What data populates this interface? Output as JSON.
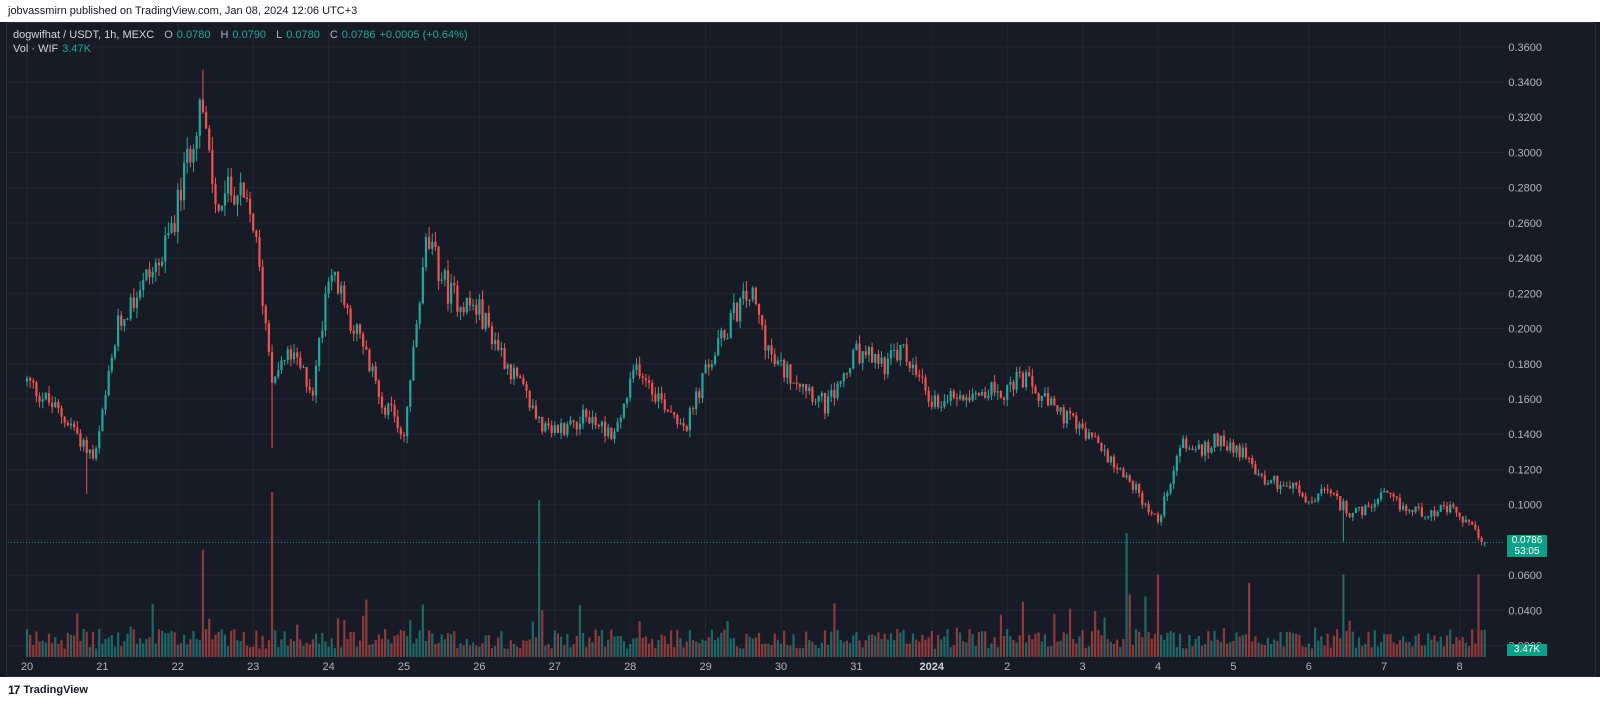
{
  "header": {
    "published_text": "jobvassmirn published on TradingView.com, Jan 08, 2024 12:06 UTC+3"
  },
  "legend": {
    "symbol": "dogwifhat / USDT, 1h, MEXC",
    "o_label": "O",
    "o_value": "0.0780",
    "h_label": "H",
    "h_value": "0.0790",
    "l_label": "L",
    "l_value": "0.0780",
    "c_label": "C",
    "c_value": "0.0786",
    "change": "+0.0005 (+0.64%)",
    "vol_label": "Vol · WIF",
    "vol_value": "3.47K"
  },
  "price_tag": {
    "price": "0.0786",
    "countdown": "53:05"
  },
  "vol_tag": "3.47K",
  "footer": {
    "logo_mark": "17",
    "brand": "TradingView"
  },
  "colors": {
    "up": "#26a69a",
    "down": "#ef5350",
    "background": "#161a25",
    "grid": "#232632",
    "axis_text": "#b2b5be"
  },
  "chart_data": {
    "type": "candlestick",
    "title": "dogwifhat / USDT, 1h, MEXC",
    "y_ticks": [
      "0.3600",
      "0.3400",
      "0.3200",
      "0.3000",
      "0.2800",
      "0.2600",
      "0.2400",
      "0.2200",
      "0.2000",
      "0.1800",
      "0.1600",
      "0.1400",
      "0.1200",
      "0.1000",
      "0.0800",
      "0.0600",
      "0.0400",
      "0.0200"
    ],
    "ylim": [
      0.0135,
      0.3735
    ],
    "x_ticks": [
      "20",
      "21",
      "22",
      "23",
      "24",
      "25",
      "26",
      "27",
      "28",
      "29",
      "30",
      "31",
      "2024",
      "2",
      "3",
      "4",
      "5",
      "6",
      "7",
      "8"
    ],
    "x_tick_bold": [
      "2024"
    ],
    "close_anchors": [
      {
        "date": "20",
        "close": 0.17
      },
      {
        "date": "20.6",
        "close": 0.145
      },
      {
        "date": "20.9",
        "close": 0.125
      },
      {
        "date": "21.2",
        "close": 0.2
      },
      {
        "date": "21.5",
        "close": 0.225
      },
      {
        "date": "21.8",
        "close": 0.24
      },
      {
        "date": "22.0",
        "close": 0.27
      },
      {
        "date": "22.3",
        "close": 0.33
      },
      {
        "date": "22.5",
        "close": 0.27
      },
      {
        "date": "22.75",
        "close": 0.28
      },
      {
        "date": "23.0",
        "close": 0.26
      },
      {
        "date": "23.25",
        "close": 0.175
      },
      {
        "date": "23.5",
        "close": 0.185
      },
      {
        "date": "23.8",
        "close": 0.165
      },
      {
        "date": "24.0",
        "close": 0.235
      },
      {
        "date": "24.4",
        "close": 0.195
      },
      {
        "date": "24.7",
        "close": 0.16
      },
      {
        "date": "25.0",
        "close": 0.14
      },
      {
        "date": "25.3",
        "close": 0.25
      },
      {
        "date": "25.6",
        "close": 0.22
      },
      {
        "date": "26.0",
        "close": 0.21
      },
      {
        "date": "26.5",
        "close": 0.17
      },
      {
        "date": "26.9",
        "close": 0.14
      },
      {
        "date": "27.4",
        "close": 0.15
      },
      {
        "date": "27.8",
        "close": 0.14
      },
      {
        "date": "28.1",
        "close": 0.18
      },
      {
        "date": "28.4",
        "close": 0.16
      },
      {
        "date": "28.75",
        "close": 0.145
      },
      {
        "date": "29.0",
        "close": 0.175
      },
      {
        "date": "29.4",
        "close": 0.21
      },
      {
        "date": "29.6",
        "close": 0.22
      },
      {
        "date": "29.9",
        "close": 0.18
      },
      {
        "date": "30.3",
        "close": 0.17
      },
      {
        "date": "30.6",
        "close": 0.155
      },
      {
        "date": "31.0",
        "close": 0.185
      },
      {
        "date": "31.4",
        "close": 0.18
      },
      {
        "date": "31.6",
        "close": 0.188
      },
      {
        "date": "1.0",
        "close": 0.158
      },
      {
        "date": "1.5",
        "close": 0.165
      },
      {
        "date": "2.0",
        "close": 0.165
      },
      {
        "date": "2.2",
        "close": 0.172
      },
      {
        "date": "2.5",
        "close": 0.158
      },
      {
        "date": "2.9",
        "close": 0.145
      },
      {
        "date": "3.3",
        "close": 0.13
      },
      {
        "date": "3.6",
        "close": 0.115
      },
      {
        "date": "4.0",
        "close": 0.09
      },
      {
        "date": "4.3",
        "close": 0.135
      },
      {
        "date": "4.6",
        "close": 0.13
      },
      {
        "date": "4.8",
        "close": 0.138
      },
      {
        "date": "5.1",
        "close": 0.13
      },
      {
        "date": "5.4",
        "close": 0.115
      },
      {
        "date": "5.8",
        "close": 0.11
      },
      {
        "date": "6.0",
        "close": 0.1
      },
      {
        "date": "6.2",
        "close": 0.108
      },
      {
        "date": "6.5",
        "close": 0.097
      },
      {
        "date": "6.7",
        "close": 0.095
      },
      {
        "date": "7.0",
        "close": 0.105
      },
      {
        "date": "7.3",
        "close": 0.097
      },
      {
        "date": "7.6",
        "close": 0.096
      },
      {
        "date": "7.9",
        "close": 0.097
      },
      {
        "date": "8.15",
        "close": 0.087
      },
      {
        "date": "8.35",
        "close": 0.0786
      }
    ],
    "notable_wicks": [
      {
        "date": "22.35",
        "high": 0.347
      },
      {
        "date": "23.25",
        "low": 0.132
      },
      {
        "date": "20.8",
        "low": 0.106
      },
      {
        "date": "6.45",
        "low": 0.079
      }
    ],
    "last": {
      "open": 0.078,
      "high": 0.079,
      "low": 0.078,
      "close": 0.0786
    },
    "volume_label": "Vol · WIF",
    "volume_last": "3.47K",
    "volume_spikes": [
      {
        "date": "23.25",
        "rel": 1.0
      },
      {
        "date": "26.8",
        "rel": 0.95
      },
      {
        "date": "22.35",
        "rel": 0.65
      },
      {
        "date": "3.6",
        "rel": 0.75
      },
      {
        "date": "8.25",
        "rel": 0.5
      },
      {
        "date": "6.45",
        "rel": 0.5
      },
      {
        "date": "4.0",
        "rel": 0.5
      },
      {
        "date": "5.2",
        "rel": 0.45
      }
    ]
  }
}
